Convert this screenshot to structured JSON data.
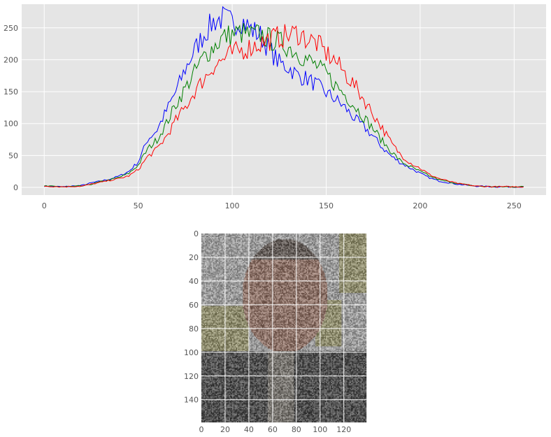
{
  "colors": {
    "panel_background": "#e5e5e5",
    "grid": "#ffffff",
    "tick_text": "#555555"
  },
  "chart_data": [
    {
      "type": "line",
      "title": "",
      "xlabel": "",
      "ylabel": "",
      "xlim": [
        -12,
        267
      ],
      "ylim": [
        -12,
        287
      ],
      "grid": true,
      "x_ticks": [
        0,
        50,
        100,
        150,
        200,
        250
      ],
      "y_ticks": [
        0,
        50,
        100,
        150,
        200,
        250
      ],
      "x": [
        0,
        10,
        20,
        25,
        30,
        35,
        40,
        45,
        50,
        55,
        60,
        65,
        70,
        75,
        80,
        85,
        90,
        95,
        100,
        105,
        110,
        115,
        120,
        125,
        130,
        135,
        140,
        145,
        150,
        155,
        160,
        165,
        170,
        175,
        180,
        185,
        190,
        195,
        200,
        205,
        210,
        220,
        230,
        240,
        255
      ],
      "series": [
        {
          "color": "#0000ff",
          "values": [
            2,
            1,
            3,
            7,
            10,
            13,
            18,
            25,
            40,
            75,
            90,
            120,
            150,
            185,
            215,
            240,
            260,
            265,
            258,
            262,
            248,
            238,
            215,
            195,
            188,
            175,
            170,
            160,
            148,
            138,
            125,
            108,
            95,
            80,
            62,
            48,
            38,
            30,
            22,
            15,
            10,
            5,
            2,
            1,
            1
          ]
        },
        {
          "color": "#008000",
          "values": [
            2,
            1,
            2,
            5,
            9,
            12,
            16,
            22,
            35,
            60,
            75,
            100,
            130,
            155,
            180,
            205,
            220,
            235,
            240,
            242,
            238,
            240,
            232,
            228,
            220,
            210,
            200,
            190,
            178,
            160,
            145,
            128,
            110,
            92,
            72,
            55,
            40,
            32,
            25,
            18,
            12,
            6,
            2,
            1,
            1
          ]
        },
        {
          "color": "#ff0000",
          "values": [
            2,
            1,
            2,
            5,
            8,
            11,
            14,
            18,
            28,
            48,
            60,
            80,
            105,
            125,
            150,
            170,
            190,
            200,
            210,
            215,
            220,
            226,
            232,
            236,
            238,
            242,
            232,
            226,
            210,
            198,
            178,
            160,
            138,
            115,
            92,
            68,
            50,
            38,
            30,
            20,
            14,
            6,
            2,
            1,
            1
          ]
        }
      ]
    },
    {
      "type": "heatmap",
      "title": "",
      "xlabel": "",
      "ylabel": "",
      "xlim": [
        0,
        139
      ],
      "ylim": [
        159,
        0
      ],
      "grid": true,
      "x_ticks": [
        0,
        20,
        40,
        60,
        80,
        100,
        120
      ],
      "y_ticks": [
        0,
        20,
        40,
        60,
        80,
        100,
        120,
        140
      ],
      "image_width": 139,
      "image_height": 159,
      "image_description_colors": [
        "#9a9a9a",
        "#6f6a66",
        "#8a7468",
        "#8e8a70",
        "#4a4a4a"
      ]
    }
  ]
}
